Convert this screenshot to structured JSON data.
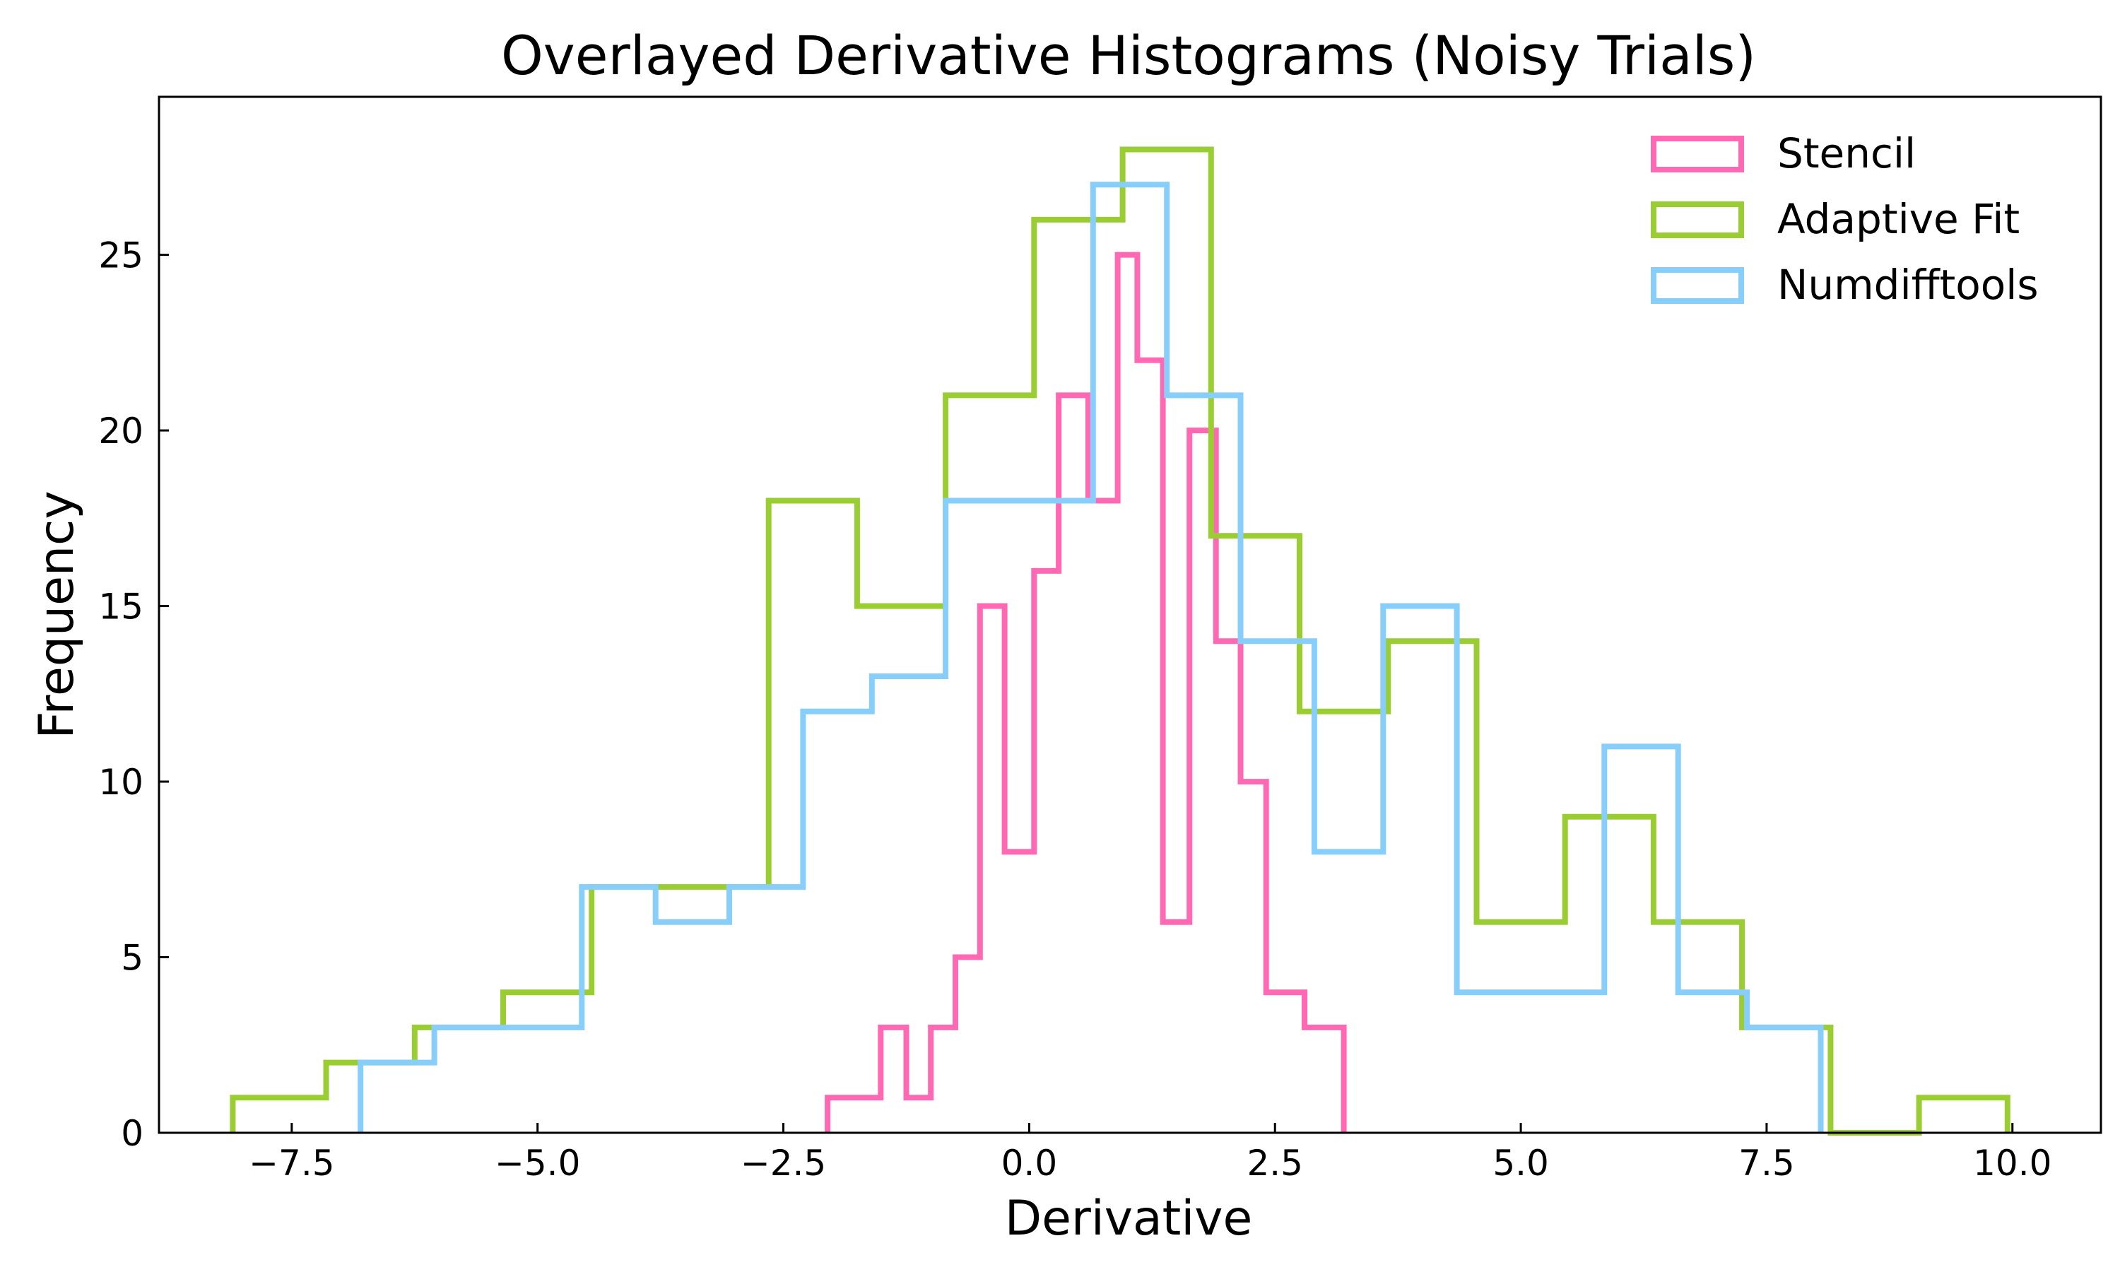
{
  "chart_data": {
    "type": "histogram",
    "title": "Overlayed Derivative Histograms (Noisy Trials)",
    "xlabel": "Derivative",
    "ylabel": "Frequency",
    "xlim": [
      -8.85,
      10.9
    ],
    "ylim": [
      0,
      29.5
    ],
    "xticks": [
      -7.5,
      -5.0,
      -2.5,
      0.0,
      2.5,
      5.0,
      7.5,
      10.0
    ],
    "xtick_labels": [
      "−7.5",
      "−5.0",
      "−2.5",
      "0.0",
      "2.5",
      "5.0",
      "7.5",
      "10.0"
    ],
    "yticks": [
      0,
      5,
      10,
      15,
      20,
      25
    ],
    "ytick_labels": [
      "0",
      "5",
      "10",
      "15",
      "20",
      "25"
    ],
    "legend_position": "top-right",
    "histtype": "step",
    "series": [
      {
        "name": "Stencil",
        "color": "#ff69b4",
        "bin_edges": [
          -2.05,
          -1.51,
          -1.25,
          -1.0,
          -0.75,
          -0.5,
          -0.25,
          0.05,
          0.3,
          0.6,
          0.9,
          1.1,
          1.36,
          1.63,
          1.9,
          2.15,
          2.41,
          2.8,
          3.2
        ],
        "counts": [
          1,
          3,
          1,
          3,
          5,
          15,
          8,
          16,
          21,
          18,
          25,
          22,
          6,
          20,
          14,
          10,
          4,
          3
        ]
      },
      {
        "name": "Adaptive Fit",
        "color": "#9acd32",
        "bin_edges": [
          -8.1,
          -7.15,
          -6.25,
          -5.35,
          -4.45,
          -3.55,
          -2.65,
          -1.75,
          -0.85,
          0.05,
          0.95,
          1.85,
          2.75,
          3.65,
          4.55,
          5.45,
          6.35,
          7.25,
          8.15,
          9.05,
          9.95
        ],
        "counts": [
          1,
          2,
          3,
          4,
          7,
          7,
          18,
          15,
          21,
          26,
          28,
          17,
          12,
          14,
          6,
          9,
          6,
          3,
          0,
          1
        ]
      },
      {
        "name": "Numdifftools",
        "color": "#87cefa",
        "bin_edges": [
          -6.8,
          -6.05,
          -4.55,
          -3.8,
          -3.05,
          -2.3,
          -1.6,
          -0.85,
          0.65,
          1.4,
          2.15,
          2.9,
          3.6,
          4.35,
          5.85,
          6.6,
          7.3,
          8.05
        ],
        "counts": [
          2,
          3,
          7,
          6,
          7,
          12,
          13,
          18,
          27,
          21,
          14,
          8,
          15,
          4,
          11,
          4,
          3
        ]
      }
    ]
  }
}
